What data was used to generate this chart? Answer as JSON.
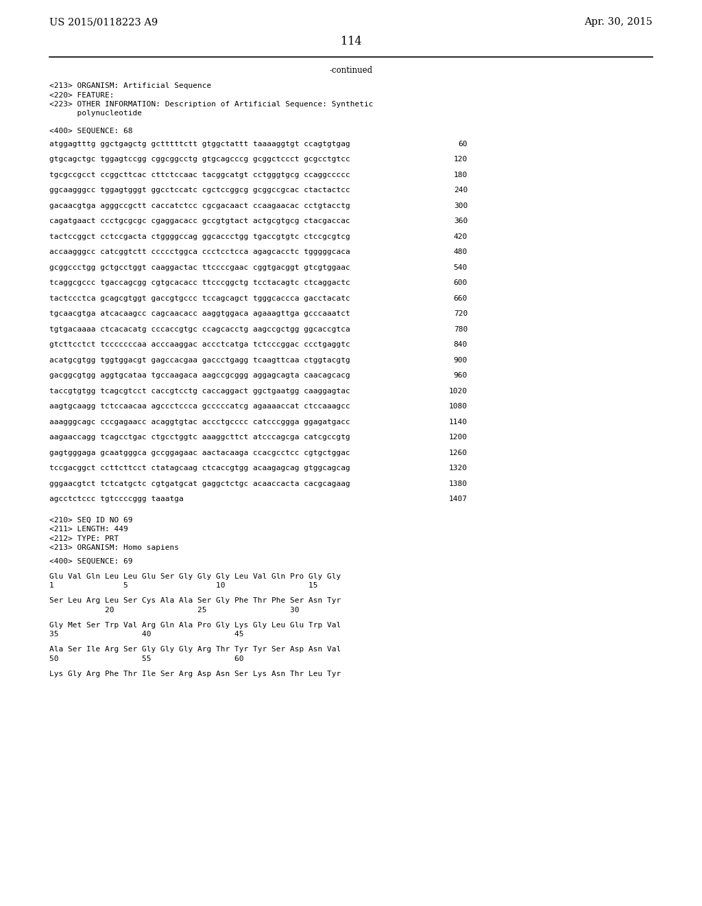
{
  "header_left": "US 2015/0118223 A9",
  "header_right": "Apr. 30, 2015",
  "page_number": "114",
  "continued_label": "-continued",
  "background_color": "#ffffff",
  "text_color": "#000000",
  "font_size_header": 10.5,
  "font_size_body": 8.0,
  "font_size_page": 11.5,
  "sequence_header": [
    "<213> ORGANISM: Artificial Sequence",
    "<220> FEATURE:",
    "<223> OTHER INFORMATION: Description of Artificial Sequence: Synthetic",
    "      polynucleotide",
    "",
    "<400> SEQUENCE: 68"
  ],
  "sequence_lines": [
    [
      "atggagtttg ggctgagctg gctttttctt gtggctattt taaaaggtgt ccagtgtgag",
      "60"
    ],
    [
      "gtgcagctgc tggagtccgg cggcggcctg gtgcagcccg gcggctccct gcgcctgtcc",
      "120"
    ],
    [
      "tgcgccgcct ccggcttcac cttctccaac tacggcatgt cctgggtgcg ccaggccccc",
      "180"
    ],
    [
      "ggcaagggcc tggagtgggt ggcctccatc cgctccggcg gcggccgcac ctactactcc",
      "240"
    ],
    [
      "gacaacgtga agggccgctt caccatctcc cgcgacaact ccaagaacac cctgtacctg",
      "300"
    ],
    [
      "cagatgaact ccctgcgcgc cgaggacacc gccgtgtact actgcgtgcg ctacgaccac",
      "360"
    ],
    [
      "tactccggct cctccgacta ctggggccag ggcaccctgg tgaccgtgtc ctccgcgtcg",
      "420"
    ],
    [
      "accaagggcc catcggtctt ccccctggca ccctcctcca agagcacctc tgggggcaca",
      "480"
    ],
    [
      "gcggccctgg gctgcctggt caaggactac ttccccgaac cggtgacggt gtcgtggaac",
      "540"
    ],
    [
      "tcaggcgccc tgaccagcgg cgtgcacacc ttcccggctg tcctacagtc ctcaggactc",
      "600"
    ],
    [
      "tactccctca gcagcgtggt gaccgtgccc tccagcagct tgggcaccca gacctacatc",
      "660"
    ],
    [
      "tgcaacgtga atcacaagcc cagcaacacc aaggtggaca agaaagttga gcccaaatct",
      "720"
    ],
    [
      "tgtgacaaaa ctcacacatg cccaccgtgc ccagcacctg aagccgctgg ggcaccgtca",
      "780"
    ],
    [
      "gtcttcctct tcccccccaa acccaaggac accctcatga tctcccggac ccctgaggtc",
      "840"
    ],
    [
      "acatgcgtgg tggtggacgt gagccacgaa gaccctgagg tcaagttcaa ctggtacgtg",
      "900"
    ],
    [
      "gacggcgtgg aggtgcataa tgccaagaca aagccgcggg aggagcagta caacagcacg",
      "960"
    ],
    [
      "taccgtgtgg tcagcgtcct caccgtcctg caccaggact ggctgaatgg caaggagtac",
      "1020"
    ],
    [
      "aagtgcaagg tctccaacaa agccctccca gcccccatcg agaaaaccat ctccaaagcc",
      "1080"
    ],
    [
      "aaagggcagc cccgagaacc acaggtgtac accctgcccc catcccggga ggagatgacc",
      "1140"
    ],
    [
      "aagaaccagg tcagcctgac ctgcctggtc aaaggcttct atcccagcga catcgccgtg",
      "1200"
    ],
    [
      "gagtgggaga gcaatgggca gccggagaac aactacaaga ccacgcctcc cgtgctggac",
      "1260"
    ],
    [
      "tccgacggct ccttcttcct ctatagcaag ctcaccgtgg acaagagcag gtggcagcag",
      "1320"
    ],
    [
      "gggaacgtct tctcatgctc cgtgatgcat gaggctctgc acaaccacta cacgcagaag",
      "1380"
    ],
    [
      "agcctctccc tgtccccggg taaatga",
      "1407"
    ]
  ],
  "seq69_header": [
    "<210> SEQ ID NO 69",
    "<211> LENGTH: 449",
    "<212> TYPE: PRT",
    "<213> ORGANISM: Homo sapiens"
  ],
  "seq69_sequence_label": "<400> SEQUENCE: 69",
  "seq69_amino_blocks": [
    {
      "residues": "Glu Val Gln Leu Leu Glu Ser Gly Gly Gly Leu Val Gln Pro Gly Gly",
      "numbers": "1               5                   10                  15"
    },
    {
      "residues": "Ser Leu Arg Leu Ser Cys Ala Ala Ser Gly Phe Thr Phe Ser Asn Tyr",
      "numbers": "            20                  25                  30"
    },
    {
      "residues": "Gly Met Ser Trp Val Arg Gln Ala Pro Gly Lys Gly Leu Glu Trp Val",
      "numbers": "35                  40                  45"
    },
    {
      "residues": "Ala Ser Ile Arg Ser Gly Gly Gly Arg Thr Tyr Tyr Ser Asp Asn Val",
      "numbers": "50                  55                  60"
    },
    {
      "residues": "Lys Gly Arg Phe Thr Ile Ser Arg Asp Asn Ser Lys Asn Thr Leu Tyr",
      "numbers": ""
    }
  ]
}
